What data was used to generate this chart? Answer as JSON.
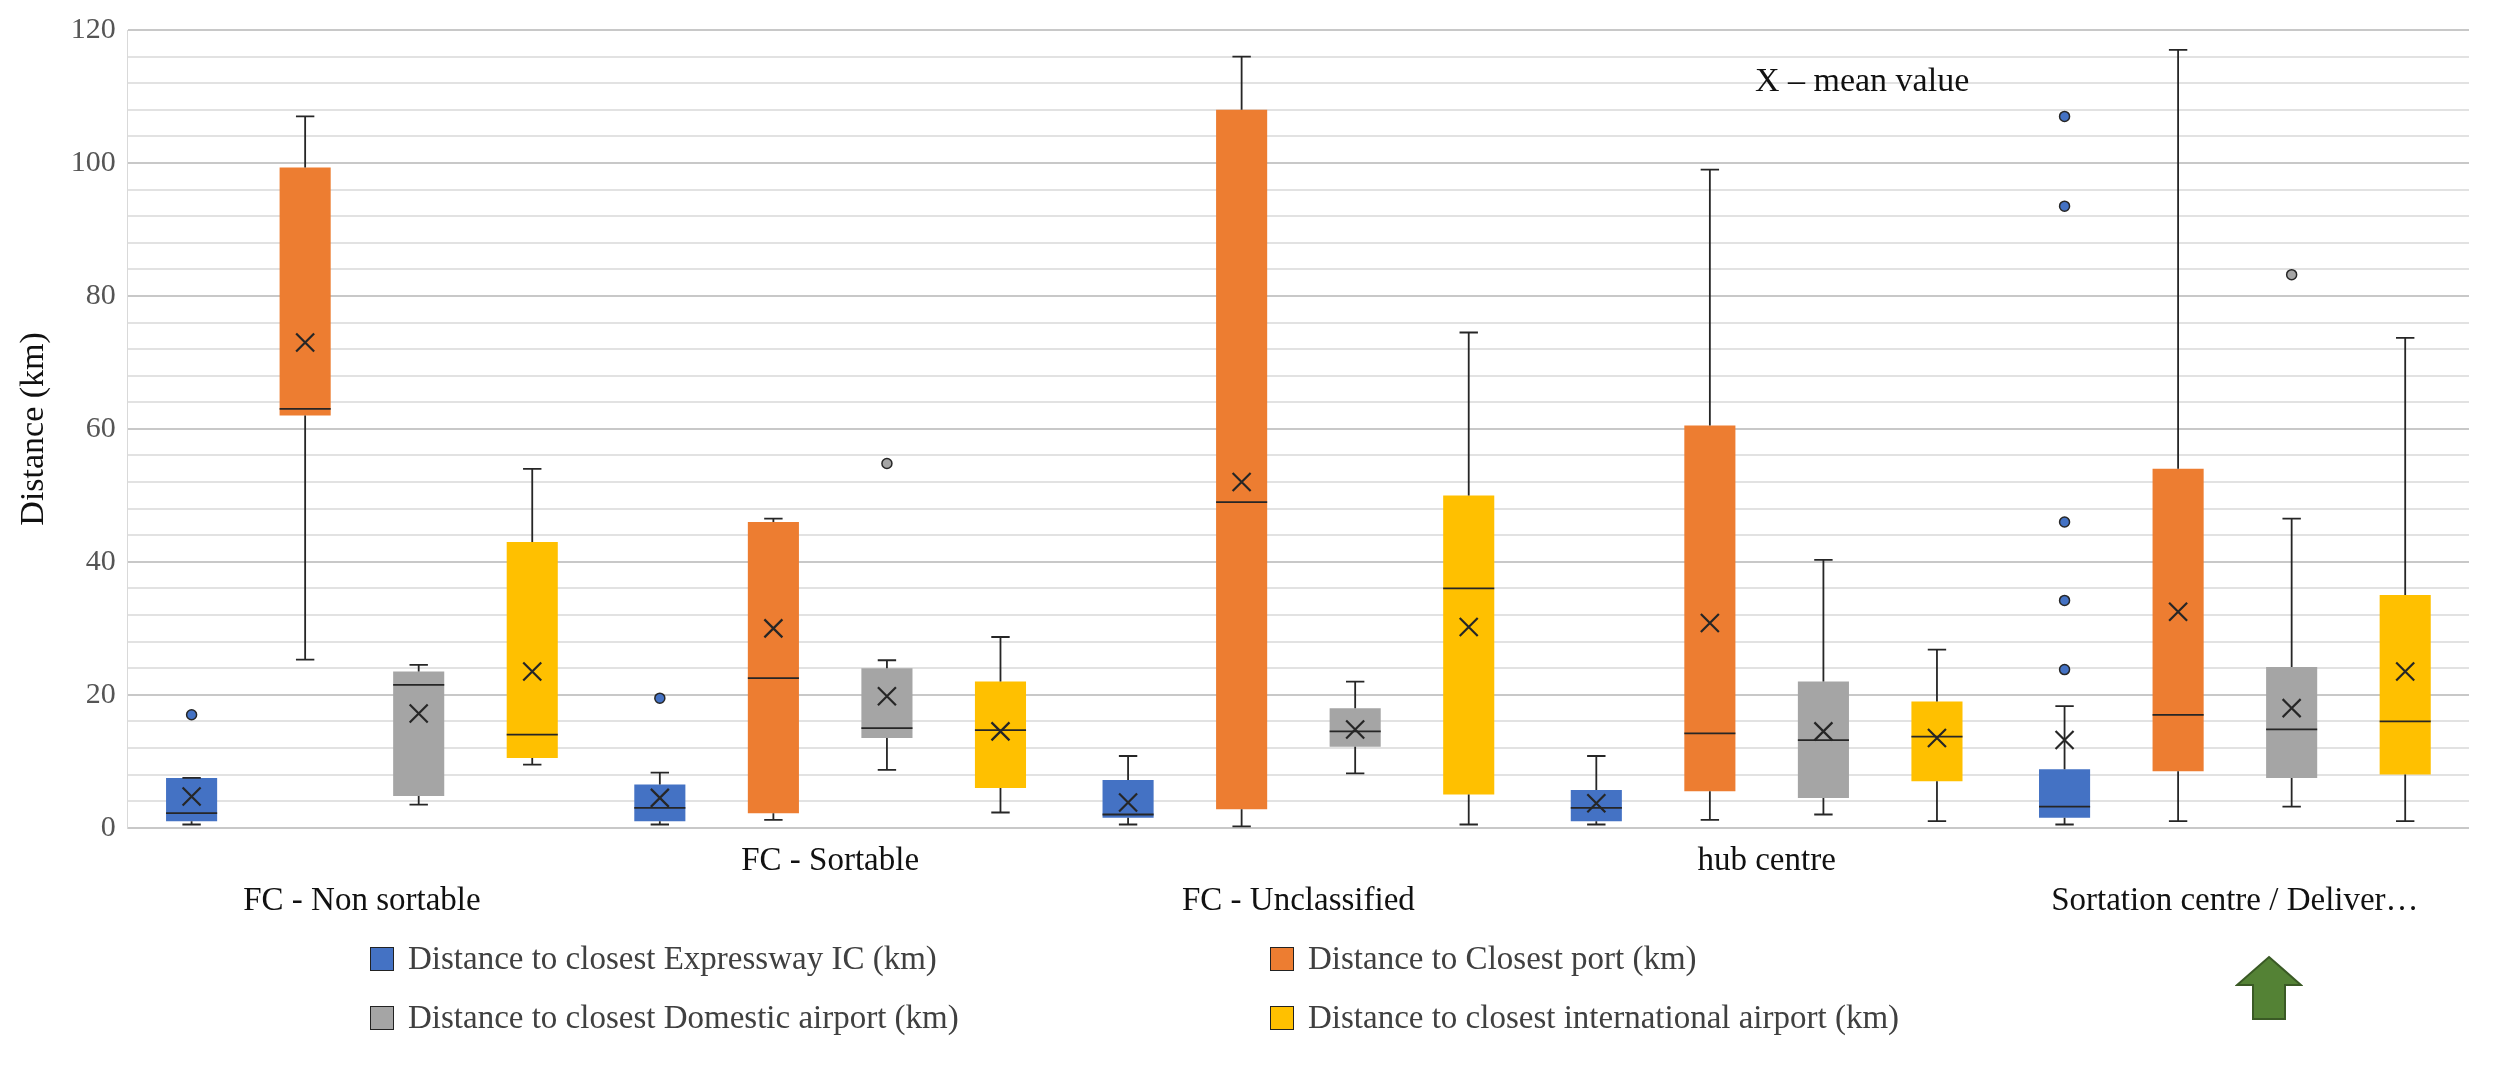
{
  "chart_data": {
    "type": "box",
    "ylabel": "Distance (km)",
    "categories": [
      "FC - Non sortable",
      "FC - Sortable",
      "FC - Unclassified",
      "hub centre",
      "Sortation centre / Deliver…"
    ],
    "ylim": [
      0,
      120
    ],
    "yticks": [
      0,
      {
        "value": 4,
        "label": null
      },
      {
        "value": 8,
        "label": null
      },
      {
        "value": 12,
        "label": null
      },
      {
        "value": 16,
        "label": null
      },
      20,
      {
        "value": 24,
        "label": null
      },
      {
        "value": 28,
        "label": null
      },
      {
        "value": 32,
        "label": null
      },
      {
        "value": 36,
        "label": null
      },
      40,
      {
        "value": 44,
        "label": null
      },
      {
        "value": 48,
        "label": null
      },
      {
        "value": 52,
        "label": null
      },
      {
        "value": 56,
        "label": null
      },
      60,
      {
        "value": 64,
        "label": null
      },
      {
        "value": 68,
        "label": null
      },
      {
        "value": 72,
        "label": null
      },
      {
        "value": 76,
        "label": null
      },
      80,
      {
        "value": 84,
        "label": null
      },
      {
        "value": 88,
        "label": null
      },
      {
        "value": 92,
        "label": null
      },
      {
        "value": 96,
        "label": null
      },
      100,
      {
        "value": 104,
        "label": null
      },
      {
        "value": 108,
        "label": null
      },
      {
        "value": 112,
        "label": null
      },
      {
        "value": 116,
        "label": null
      },
      120
    ],
    "grid": "y",
    "legend": "bottom",
    "annotations": [
      "X – mean value"
    ],
    "series": [
      {
        "name": "Distance to closest Expressway IC (km)",
        "color": "#4472c4",
        "boxes": [
          {
            "low": 0.5,
            "q1": 1,
            "median": 2.2,
            "q3": 7.5,
            "high": 7.5,
            "mean": 4.7,
            "outliers": [
              17
            ]
          },
          {
            "low": 0.5,
            "q1": 1,
            "median": 3,
            "q3": 6.5,
            "high": 8.3,
            "mean": 4.5,
            "outliers": [
              19.5
            ]
          },
          {
            "low": 0.5,
            "q1": 1.5,
            "median": 2,
            "q3": 7.2,
            "high": 10.8,
            "mean": 3.8
          },
          {
            "low": 0.5,
            "q1": 1,
            "median": 3,
            "q3": 5.7,
            "high": 10.8,
            "mean": 3.7
          },
          {
            "low": 0.5,
            "q1": 1.5,
            "median": 3.2,
            "q3": 8.8,
            "high": 18.3,
            "mean": 13.2,
            "outliers": [
              23.8,
              34.2,
              46,
              93.5,
              107
            ]
          }
        ]
      },
      {
        "name": "Distance to Closest port (km)",
        "color": "#ed7d31",
        "boxes": [
          {
            "low": 25.3,
            "q1": 62,
            "median": 63,
            "q3": 99.3,
            "high": 107,
            "mean": 73
          },
          {
            "low": 1.2,
            "q1": 2.2,
            "median": 22.5,
            "q3": 46,
            "high": 46.5,
            "mean": 30
          },
          {
            "low": 0.2,
            "q1": 2.8,
            "median": 49,
            "q3": 108,
            "high": 116,
            "mean": 52
          },
          {
            "low": 1.2,
            "q1": 5.5,
            "median": 14.2,
            "q3": 60.5,
            "high": 99,
            "mean": 30.8
          },
          {
            "low": 1,
            "q1": 8.5,
            "median": 17,
            "q3": 54,
            "high": 117,
            "mean": 32.5
          }
        ]
      },
      {
        "name": "Distance to closest Domestic airport (km)",
        "color": "#a5a5a5",
        "boxes": [
          {
            "low": 3.5,
            "q1": 4.8,
            "median": 21.5,
            "q3": 23.5,
            "high": 24.5,
            "mean": 17.2
          },
          {
            "low": 8.7,
            "q1": 13.5,
            "median": 15,
            "q3": 24,
            "high": 25.2,
            "mean": 19.8,
            "outliers": [
              54.8
            ]
          },
          {
            "low": 8.2,
            "q1": 12.2,
            "median": 14.5,
            "q3": 18,
            "high": 22,
            "mean": 14.8
          },
          {
            "low": 2,
            "q1": 4.5,
            "median": 13.2,
            "q3": 22,
            "high": 40.3,
            "mean": 14.5
          },
          {
            "low": 3.2,
            "q1": 7.5,
            "median": 14.8,
            "q3": 24.2,
            "high": 46.5,
            "mean": 18,
            "outliers": [
              83.2
            ]
          }
        ]
      },
      {
        "name": "Distance to closest international airport (km)",
        "color": "#ffc000",
        "boxes": [
          {
            "low": 9.5,
            "q1": 10.5,
            "median": 14,
            "q3": 43,
            "high": 54,
            "mean": 23.5
          },
          {
            "low": 2.3,
            "q1": 6,
            "median": 14.7,
            "q3": 22,
            "high": 28.7,
            "mean": 14.5
          },
          {
            "low": 0.5,
            "q1": 5,
            "median": 36,
            "q3": 50,
            "high": 74.5,
            "mean": 30.2
          },
          {
            "low": 1,
            "q1": 7,
            "median": 13.7,
            "q3": 19,
            "high": 26.8,
            "mean": 13.5
          },
          {
            "low": 1,
            "q1": 8,
            "median": 16,
            "q3": 35,
            "high": 73.7,
            "mean": 23.5
          }
        ]
      }
    ]
  }
}
